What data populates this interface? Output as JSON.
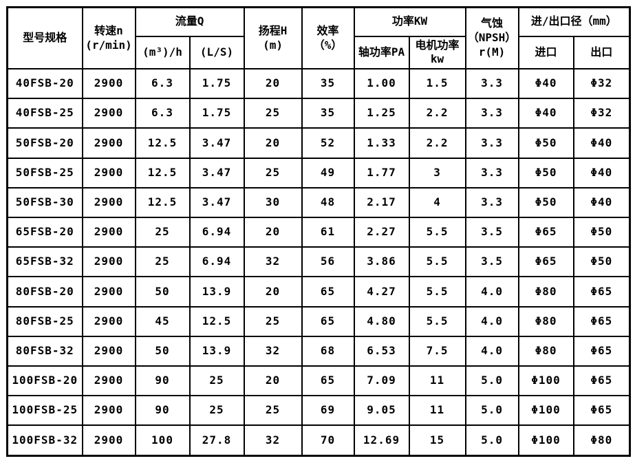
{
  "table": {
    "header": {
      "model": "型号规格",
      "speed": "转速n\n(r/min)",
      "flow": "流量Q",
      "flow_m3h": "(m³)/h",
      "flow_ls": "(L/S)",
      "head": "扬程H\n(m)",
      "efficiency": "效率\n（%）",
      "power": "功率KW",
      "shaft_power": "轴功率PA",
      "motor_power": "电机功率\nkw",
      "npsh": "气蚀\n（NPSH）\nr(M)",
      "ports": "进/出口径（mm）",
      "inlet": "进口",
      "outlet": "出口"
    },
    "column_keys": [
      "model",
      "speed",
      "flow-m3h",
      "flow-ls",
      "head",
      "efficiency",
      "shaft-power",
      "motor-power",
      "npsh",
      "inlet",
      "outlet"
    ],
    "rows": [
      [
        "40FSB-20",
        "2900",
        "6.3",
        "1.75",
        "20",
        "35",
        "1.00",
        "1.5",
        "3.3",
        "Φ40",
        "Φ32"
      ],
      [
        "40FSB-25",
        "2900",
        "6.3",
        "1.75",
        "25",
        "35",
        "1.25",
        "2.2",
        "3.3",
        "Φ40",
        "Φ32"
      ],
      [
        "50FSB-20",
        "2900",
        "12.5",
        "3.47",
        "20",
        "52",
        "1.33",
        "2.2",
        "3.3",
        "Φ50",
        "Φ40"
      ],
      [
        "50FSB-25",
        "2900",
        "12.5",
        "3.47",
        "25",
        "49",
        "1.77",
        "3",
        "3.3",
        "Φ50",
        "Φ40"
      ],
      [
        "50FSB-30",
        "2900",
        "12.5",
        "3.47",
        "30",
        "48",
        "2.17",
        "4",
        "3.3",
        "Φ50",
        "Φ40"
      ],
      [
        "65FSB-20",
        "2900",
        "25",
        "6.94",
        "20",
        "61",
        "2.27",
        "5.5",
        "3.5",
        "Φ65",
        "Φ50"
      ],
      [
        "65FSB-32",
        "2900",
        "25",
        "6.94",
        "32",
        "56",
        "3.86",
        "5.5",
        "3.5",
        "Φ65",
        "Φ50"
      ],
      [
        "80FSB-20",
        "2900",
        "50",
        "13.9",
        "20",
        "65",
        "4.27",
        "5.5",
        "4.0",
        "Φ80",
        "Φ65"
      ],
      [
        "80FSB-25",
        "2900",
        "45",
        "12.5",
        "25",
        "65",
        "4.80",
        "5.5",
        "4.0",
        "Φ80",
        "Φ65"
      ],
      [
        "80FSB-32",
        "2900",
        "50",
        "13.9",
        "32",
        "68",
        "6.53",
        "7.5",
        "4.0",
        "Φ80",
        "Φ65"
      ],
      [
        "100FSB-20",
        "2900",
        "90",
        "25",
        "20",
        "65",
        "7.09",
        "11",
        "5.0",
        "Φ100",
        "Φ65"
      ],
      [
        "100FSB-25",
        "2900",
        "90",
        "25",
        "25",
        "69",
        "9.05",
        "11",
        "5.0",
        "Φ100",
        "Φ65"
      ],
      [
        "100FSB-32",
        "2900",
        "100",
        "27.8",
        "32",
        "70",
        "12.69",
        "15",
        "5.0",
        "Φ100",
        "Φ80"
      ]
    ],
    "colors": {
      "text": "#000000",
      "border": "#000000",
      "background": "#ffffff"
    }
  }
}
